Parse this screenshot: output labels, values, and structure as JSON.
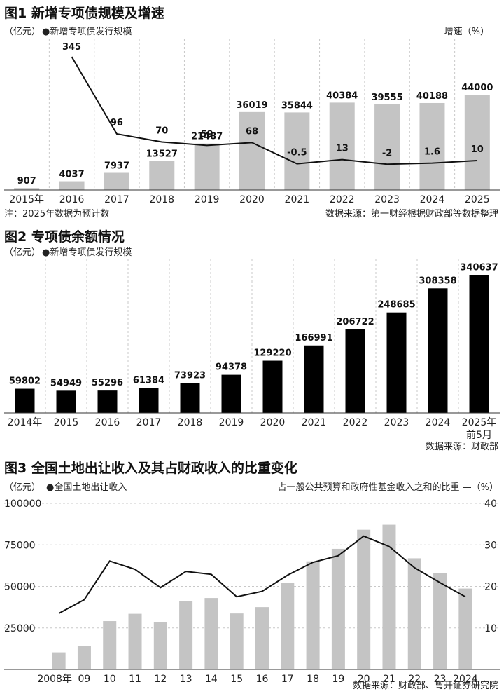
{
  "chart_data": [
    {
      "type": "bar",
      "title": "图1 新增专项债规模及增速",
      "unit_left": "（亿元）",
      "legend": "●新增专项债发行规模",
      "right_label": "增速（%）—",
      "categories": [
        "2015年",
        "2016",
        "2017",
        "2018",
        "2019",
        "2020",
        "2021",
        "2022",
        "2023",
        "2024",
        "2025"
      ],
      "series": [
        {
          "name": "新增专项债发行规模",
          "type": "bar",
          "values": [
            907,
            4037,
            7937,
            13527,
            21487,
            36019,
            35844,
            40384,
            39555,
            40188,
            44000
          ]
        },
        {
          "name": "增速",
          "type": "line",
          "values": [
            null,
            345,
            96,
            70,
            59,
            68,
            -0.5,
            13,
            -2,
            1.6,
            10
          ]
        }
      ],
      "value_labels": [
        "907",
        "4037",
        "7937",
        "13527",
        "21487",
        "36019",
        "35844",
        "40384",
        "39555",
        "40188",
        "44000"
      ],
      "rate_labels": [
        "",
        "345",
        "96",
        "70",
        "59",
        "68",
        "-0.5",
        "13",
        "-2",
        "1.6",
        "10"
      ],
      "note": "注：2025年数据为预计数",
      "source": "数据来源：第一财经根据财政部等数据整理"
    },
    {
      "type": "bar",
      "title": "图2 专项债余额情况",
      "unit_left": "（亿元）",
      "legend": "●新增专项债发行规模",
      "categories": [
        "2014年",
        "2015",
        "2016",
        "2017",
        "2018",
        "2019",
        "2020",
        "2021",
        "2022",
        "2023",
        "2024",
        "2025年前5月"
      ],
      "category_lines": [
        [
          "2014年"
        ],
        [
          "2015"
        ],
        [
          "2016"
        ],
        [
          "2017"
        ],
        [
          "2018"
        ],
        [
          "2019"
        ],
        [
          "2020"
        ],
        [
          "2021"
        ],
        [
          "2022"
        ],
        [
          "2023"
        ],
        [
          "2024"
        ],
        [
          "2025年",
          "前5月"
        ]
      ],
      "values": [
        59802,
        54949,
        55296,
        61384,
        73923,
        94378,
        129220,
        166991,
        206722,
        248685,
        308358,
        340637
      ],
      "value_labels": [
        "59802",
        "54949",
        "55296",
        "61384",
        "73923",
        "94378",
        "129220",
        "166991",
        "206722",
        "248685",
        "308358",
        "340637"
      ],
      "source": "数据来源：财政部"
    },
    {
      "type": "bar",
      "title": "图3 全国土地出让收入及其占财政收入的比重变化",
      "unit_left": "（亿元）",
      "legend": "●全国土地出让收入",
      "right_label": "占一般公共预算和政府性基金收入之和的比重 —（%）",
      "categories": [
        "2008年",
        "09",
        "10",
        "11",
        "12",
        "13",
        "14",
        "15",
        "16",
        "17",
        "18",
        "19",
        "20",
        "21",
        "22",
        "23",
        "2024"
      ],
      "ylim": [
        0,
        100000
      ],
      "y2lim": [
        0,
        40
      ],
      "yticks": [
        "100000",
        "75000",
        "50000",
        "25000"
      ],
      "y2ticks": [
        "40",
        "30",
        "20",
        "10"
      ],
      "series": [
        {
          "name": "全国土地出让收入",
          "type": "bar",
          "values": [
            10300,
            14200,
            29100,
            33500,
            28500,
            41300,
            43000,
            33700,
            37500,
            52000,
            65100,
            72600,
            84100,
            87100,
            66900,
            57900,
            48700
          ]
        },
        {
          "name": "占一般公共预算和政府性基金收入之和的比重",
          "type": "line",
          "values": [
            13.5,
            16.8,
            26.1,
            24.1,
            19.7,
            23.6,
            22.9,
            17.5,
            18.8,
            22.7,
            25.8,
            27.4,
            32.1,
            29.6,
            24.5,
            20.9,
            17.5
          ]
        }
      ],
      "source": "数据来源：财政部、粤开证券研究院"
    }
  ]
}
